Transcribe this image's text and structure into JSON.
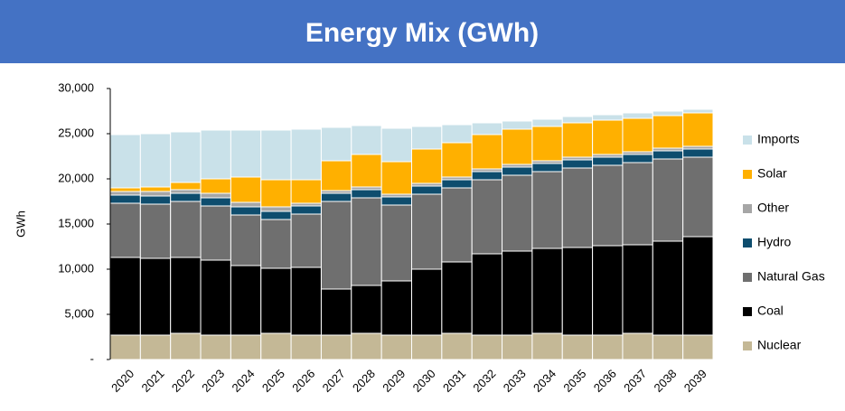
{
  "chart_data": {
    "type": "stacked_bar",
    "title": "Energy Mix (GWh)",
    "y_label": "GWh",
    "categories": [
      "2020",
      "2021",
      "2022",
      "2023",
      "2024",
      "2025",
      "2026",
      "2027",
      "2028",
      "2029",
      "2030",
      "2031",
      "2032",
      "2033",
      "2034",
      "2035",
      "2036",
      "2037",
      "2038",
      "2039"
    ],
    "series": [
      {
        "name": "Nuclear",
        "color": "#c4b896",
        "values": [
          2700,
          2700,
          2900,
          2700,
          2700,
          2900,
          2700,
          2700,
          2900,
          2700,
          2700,
          2900,
          2700,
          2700,
          2900,
          2700,
          2700,
          2900,
          2700,
          2700
        ]
      },
      {
        "name": "Coal",
        "color": "#000000",
        "values": [
          8600,
          8500,
          8400,
          8300,
          7700,
          7200,
          7500,
          5100,
          5300,
          6000,
          7300,
          7900,
          9000,
          9300,
          9400,
          9700,
          9900,
          9800,
          10400,
          10900
        ]
      },
      {
        "name": "Natural Gas",
        "color": "#6f6f6f",
        "values": [
          6000,
          6000,
          6200,
          6000,
          5600,
          5400,
          5900,
          9700,
          9700,
          8400,
          8300,
          8200,
          8200,
          8400,
          8500,
          8800,
          8900,
          9100,
          9100,
          8800
        ]
      },
      {
        "name": "Hydro",
        "color": "#0e4d6e",
        "values": [
          900,
          900,
          900,
          900,
          900,
          900,
          900,
          900,
          900,
          900,
          900,
          900,
          900,
          900,
          900,
          900,
          900,
          900,
          900,
          900
        ]
      },
      {
        "name": "Other",
        "color": "#a6a6a6",
        "values": [
          400,
          500,
          400,
          500,
          500,
          500,
          300,
          300,
          300,
          300,
          300,
          300,
          300,
          300,
          300,
          300,
          300,
          300,
          300,
          300
        ]
      },
      {
        "name": "Solar",
        "color": "#ffb000",
        "values": [
          400,
          500,
          800,
          1600,
          2800,
          3000,
          2600,
          3300,
          3600,
          3600,
          3800,
          3800,
          3800,
          3900,
          3800,
          3800,
          3800,
          3700,
          3600,
          3700
        ]
      },
      {
        "name": "Imports",
        "color": "#c9e1e9",
        "values": [
          5900,
          5900,
          5600,
          5400,
          5200,
          5500,
          5600,
          3700,
          3200,
          3700,
          2500,
          2000,
          1300,
          900,
          800,
          700,
          600,
          600,
          500,
          400
        ]
      }
    ],
    "ylim": [
      0,
      30000
    ],
    "yticks": [
      {
        "value": 0,
        "label": "-"
      },
      {
        "value": 5000,
        "label": "5,000"
      },
      {
        "value": 10000,
        "label": "10,000"
      },
      {
        "value": 15000,
        "label": "15,000"
      },
      {
        "value": 20000,
        "label": "20,000"
      },
      {
        "value": 25000,
        "label": "25,000"
      },
      {
        "value": 30000,
        "label": "30,000"
      }
    ],
    "legend": "right"
  }
}
